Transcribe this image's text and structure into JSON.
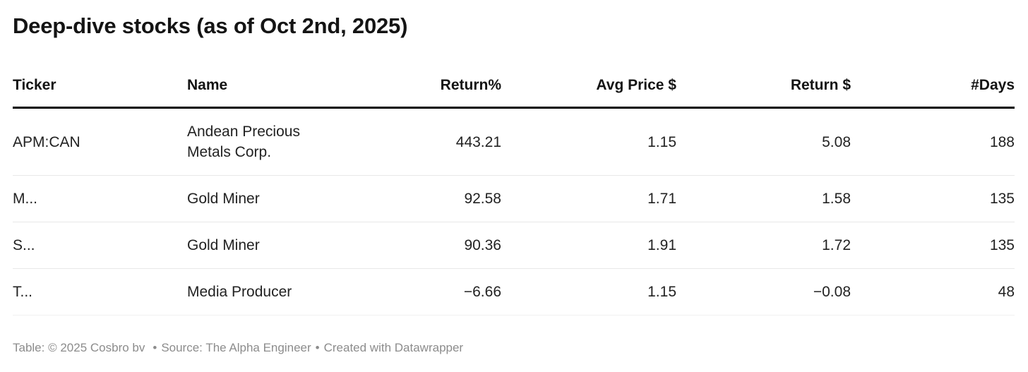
{
  "title": "Deep-dive stocks (as of Oct 2nd, 2025)",
  "table": {
    "columns": [
      {
        "key": "ticker",
        "label": "Ticker",
        "align": "left"
      },
      {
        "key": "name",
        "label": "Name",
        "align": "left"
      },
      {
        "key": "return_pct",
        "label": "Return%",
        "align": "right"
      },
      {
        "key": "avg_price",
        "label": "Avg Price $",
        "align": "right"
      },
      {
        "key": "return_usd",
        "label": "Return $",
        "align": "right"
      },
      {
        "key": "days",
        "label": "#Days",
        "align": "right"
      }
    ],
    "rows": [
      {
        "ticker": "APM:CAN",
        "name": "Andean Precious Metals Corp.",
        "return_pct": "443.21",
        "avg_price": "1.15",
        "return_usd": "5.08",
        "days": "188"
      },
      {
        "ticker": "M...",
        "name": "Gold Miner",
        "return_pct": "92.58",
        "avg_price": "1.71",
        "return_usd": "1.58",
        "days": "135"
      },
      {
        "ticker": "S...",
        "name": "Gold Miner",
        "return_pct": "90.36",
        "avg_price": "1.91",
        "return_usd": "1.72",
        "days": "135"
      },
      {
        "ticker": "T...",
        "name": "Media Producer",
        "return_pct": "−6.66",
        "avg_price": "1.15",
        "return_usd": "−0.08",
        "days": "48"
      }
    ]
  },
  "footer": {
    "credit": "Table: © 2025 Cosbro bv",
    "bullet": "•",
    "source": "Source: The Alpha Engineer",
    "created_with": "Created with Datawrapper"
  },
  "colors": {
    "title_text": "#141414",
    "body_text": "#222222",
    "header_rule": "#000000",
    "row_divider": "#e8e8e8",
    "footer_text": "#8c8c8c",
    "background": "#ffffff"
  },
  "chart_data": {
    "type": "table",
    "title": "Deep-dive stocks (as of Oct 2nd, 2025)",
    "columns": [
      "Ticker",
      "Name",
      "Return%",
      "Avg Price $",
      "Return $",
      "#Days"
    ],
    "rows": [
      [
        "APM:CAN",
        "Andean Precious Metals Corp.",
        443.21,
        1.15,
        5.08,
        188
      ],
      [
        "M...",
        "Gold Miner",
        92.58,
        1.71,
        1.58,
        135
      ],
      [
        "S...",
        "Gold Miner",
        90.36,
        1.91,
        1.72,
        135
      ],
      [
        "T...",
        "Media Producer",
        -6.66,
        1.15,
        -0.08,
        48
      ]
    ],
    "notes": "Datawrapper-style static data table, header underlined with thick black rule, light gray row dividers"
  }
}
